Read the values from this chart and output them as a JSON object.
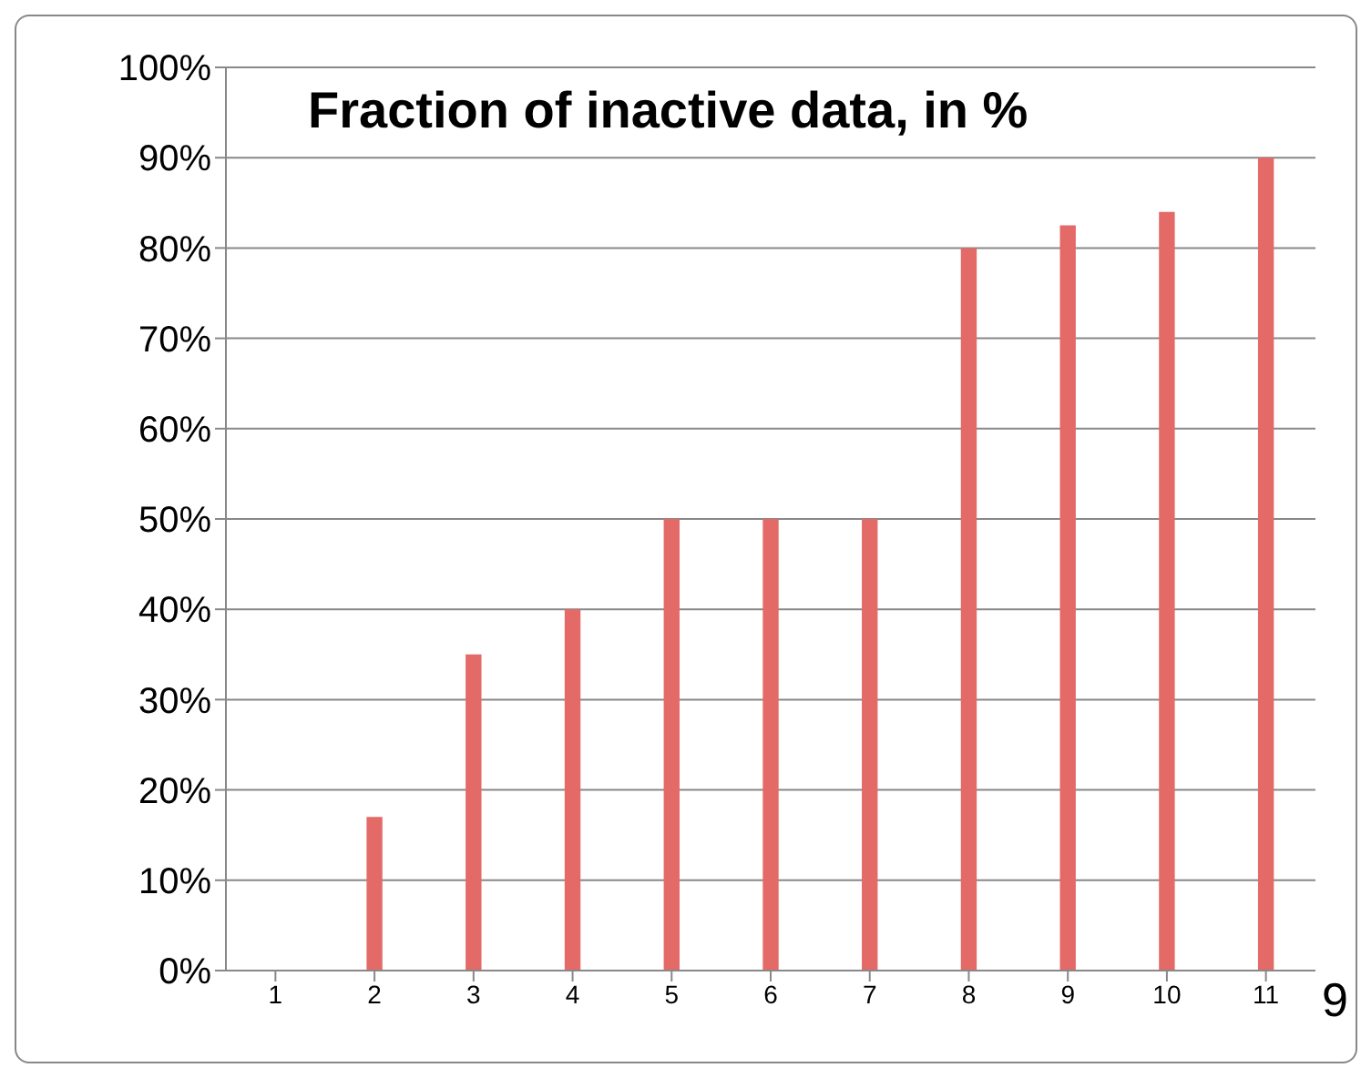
{
  "chart_data": {
    "type": "bar",
    "title": "Fraction of inactive data, in %",
    "categories": [
      "1",
      "2",
      "3",
      "4",
      "5",
      "6",
      "7",
      "8",
      "9",
      "10",
      "11"
    ],
    "values": [
      0,
      17,
      35,
      40,
      50,
      50,
      50,
      80,
      82.5,
      84,
      90
    ],
    "color": "#e46a68",
    "ylim": [
      0,
      100
    ],
    "yticks": [
      {
        "value": 0,
        "label": "0%"
      },
      {
        "value": 10,
        "label": "10%"
      },
      {
        "value": 20,
        "label": "20%"
      },
      {
        "value": 30,
        "label": "30%"
      },
      {
        "value": 40,
        "label": "40%"
      },
      {
        "value": 50,
        "label": "50%"
      },
      {
        "value": 60,
        "label": "60%"
      },
      {
        "value": 70,
        "label": "70%"
      },
      {
        "value": 80,
        "label": "80%"
      },
      {
        "value": 90,
        "label": "90%"
      },
      {
        "value": 100,
        "label": "100%"
      }
    ],
    "grid": "y",
    "annotations": [
      "9"
    ]
  }
}
